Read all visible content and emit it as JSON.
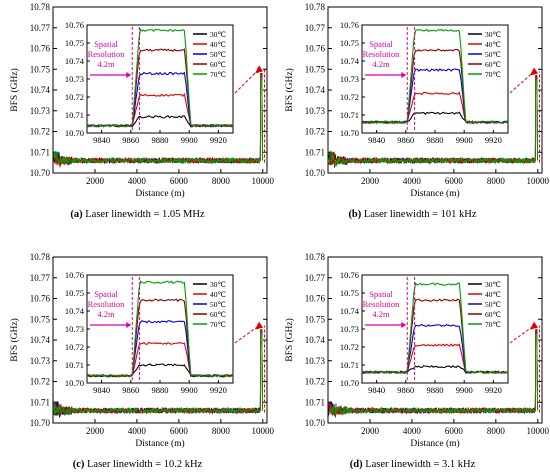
{
  "chart_data": [
    {
      "type": "line",
      "tag": "(a)",
      "caption": "Laser linewidth = 1.05 MHz",
      "xlabel": "Distance (m)",
      "ylabel": "BFS (GHz)",
      "xlim": [
        0,
        10200
      ],
      "ylim": [
        10.7,
        10.78
      ],
      "xticks": [
        2000,
        4000,
        6000,
        8000,
        10000
      ],
      "yticks": [
        "10.70",
        "10.71",
        "10.72",
        "10.73",
        "10.74",
        "10.75",
        "10.76",
        "10.77",
        "10.78"
      ],
      "baseline": 10.706,
      "spike_peak": 10.748,
      "inset": {
        "xlim": [
          9830,
          9930
        ],
        "ylim": [
          10.7,
          10.76
        ],
        "xticks": [
          9840,
          9860,
          9880,
          9900,
          9920
        ],
        "yticks": [
          "10.70",
          "10.71",
          "10.72",
          "10.73",
          "10.74",
          "10.75",
          "10.76"
        ],
        "annotation": [
          "Spatial",
          "Resolution",
          "4.2m"
        ],
        "rise_start": 9861,
        "rise_end": 9866,
        "fall_start": 9897,
        "fall_end": 9901,
        "series": [
          {
            "name": "30℃",
            "color": "#000000",
            "base": 10.704,
            "plateau": 10.709
          },
          {
            "name": "40℃",
            "color": "#e00000",
            "base": 10.704,
            "plateau": 10.721
          },
          {
            "name": "50℃",
            "color": "#0000e0",
            "base": 10.704,
            "plateau": 10.733
          },
          {
            "name": "60℃",
            "color": "#8b0000",
            "base": 10.704,
            "plateau": 10.746
          },
          {
            "name": "70℃",
            "color": "#00a000",
            "base": 10.704,
            "plateau": 10.757
          }
        ]
      }
    },
    {
      "type": "line",
      "tag": "(b)",
      "caption": "Laser linewidth = 101 kHz",
      "xlabel": "Distance (m)",
      "ylabel": "BFS (GHz)",
      "xlim": [
        0,
        10200
      ],
      "ylim": [
        10.7,
        10.78
      ],
      "xticks": [
        2000,
        4000,
        6000,
        8000,
        10000
      ],
      "yticks": [
        "10.70",
        "10.71",
        "10.72",
        "10.73",
        "10.74",
        "10.75",
        "10.76",
        "10.77",
        "10.78"
      ],
      "baseline": 10.706,
      "spike_peak": 10.747,
      "inset": {
        "xlim": [
          9830,
          9930
        ],
        "ylim": [
          10.7,
          10.76
        ],
        "xticks": [
          9840,
          9860,
          9880,
          9900,
          9920
        ],
        "yticks": [
          "10.70",
          "10.71",
          "10.72",
          "10.73",
          "10.74",
          "10.75",
          "10.76"
        ],
        "annotation": [
          "Spatial",
          "Resolution",
          "4.2m"
        ],
        "rise_start": 9861,
        "rise_end": 9866,
        "fall_start": 9897,
        "fall_end": 9901,
        "series": [
          {
            "name": "30℃",
            "color": "#000000",
            "base": 10.706,
            "plateau": 10.711
          },
          {
            "name": "40℃",
            "color": "#e00000",
            "base": 10.706,
            "plateau": 10.722
          },
          {
            "name": "50℃",
            "color": "#0000e0",
            "base": 10.706,
            "plateau": 10.735
          },
          {
            "name": "60℃",
            "color": "#8b0000",
            "base": 10.706,
            "plateau": 10.746
          },
          {
            "name": "70℃",
            "color": "#00a000",
            "base": 10.706,
            "plateau": 10.757
          }
        ]
      }
    },
    {
      "type": "line",
      "tag": "(c)",
      "caption": "Laser linewidth = 10.2 kHz",
      "xlabel": "Distance (m)",
      "ylabel": "BFS (GHz)",
      "xlim": [
        0,
        10200
      ],
      "ylim": [
        10.7,
        10.78
      ],
      "xticks": [
        2000,
        4000,
        6000,
        8000,
        10000
      ],
      "yticks": [
        "10.70",
        "10.71",
        "10.72",
        "10.73",
        "10.74",
        "10.75",
        "10.76",
        "10.77",
        "10.78"
      ],
      "baseline": 10.706,
      "spike_peak": 10.745,
      "inset": {
        "xlim": [
          9830,
          9930
        ],
        "ylim": [
          10.7,
          10.76
        ],
        "xticks": [
          9840,
          9860,
          9880,
          9900,
          9920
        ],
        "yticks": [
          "10.70",
          "10.71",
          "10.72",
          "10.73",
          "10.74",
          "10.75",
          "10.76"
        ],
        "annotation": [
          "Spatial",
          "Resolution",
          "4.2m"
        ],
        "rise_start": 9861,
        "rise_end": 9866,
        "fall_start": 9897,
        "fall_end": 9901,
        "series": [
          {
            "name": "30℃",
            "color": "#000000",
            "base": 10.704,
            "plateau": 10.71
          },
          {
            "name": "40℃",
            "color": "#e00000",
            "base": 10.704,
            "plateau": 10.722
          },
          {
            "name": "50℃",
            "color": "#0000e0",
            "base": 10.704,
            "plateau": 10.734
          },
          {
            "name": "60℃",
            "color": "#8b0000",
            "base": 10.704,
            "plateau": 10.746
          },
          {
            "name": "70℃",
            "color": "#00a000",
            "base": 10.704,
            "plateau": 10.756
          }
        ]
      }
    },
    {
      "type": "line",
      "tag": "(d)",
      "caption": "Laser linewidth = 3.1 kHz",
      "xlabel": "Distance (m)",
      "ylabel": "BFS (GHz)",
      "xlim": [
        0,
        10200
      ],
      "ylim": [
        10.7,
        10.78
      ],
      "xticks": [
        2000,
        4000,
        6000,
        8000,
        10000
      ],
      "yticks": [
        "10.70",
        "10.71",
        "10.72",
        "10.73",
        "10.74",
        "10.75",
        "10.76",
        "10.77",
        "10.78"
      ],
      "baseline": 10.706,
      "spike_peak": 10.745,
      "inset": {
        "xlim": [
          9830,
          9930
        ],
        "ylim": [
          10.7,
          10.76
        ],
        "xticks": [
          9840,
          9860,
          9880,
          9900,
          9920
        ],
        "yticks": [
          "10.70",
          "10.71",
          "10.72",
          "10.73",
          "10.74",
          "10.75",
          "10.76"
        ],
        "annotation": [
          "Spatial",
          "Resolution",
          "4.2m"
        ],
        "rise_start": 9861,
        "rise_end": 9866,
        "fall_start": 9897,
        "fall_end": 9901,
        "series": [
          {
            "name": "30℃",
            "color": "#000000",
            "base": 10.706,
            "plateau": 10.709
          },
          {
            "name": "40℃",
            "color": "#e00000",
            "base": 10.706,
            "plateau": 10.721
          },
          {
            "name": "50℃",
            "color": "#0000e0",
            "base": 10.706,
            "plateau": 10.732
          },
          {
            "name": "60℃",
            "color": "#8b0000",
            "base": 10.706,
            "plateau": 10.746
          },
          {
            "name": "70℃",
            "color": "#00a000",
            "base": 10.706,
            "plateau": 10.755
          }
        ]
      }
    }
  ]
}
